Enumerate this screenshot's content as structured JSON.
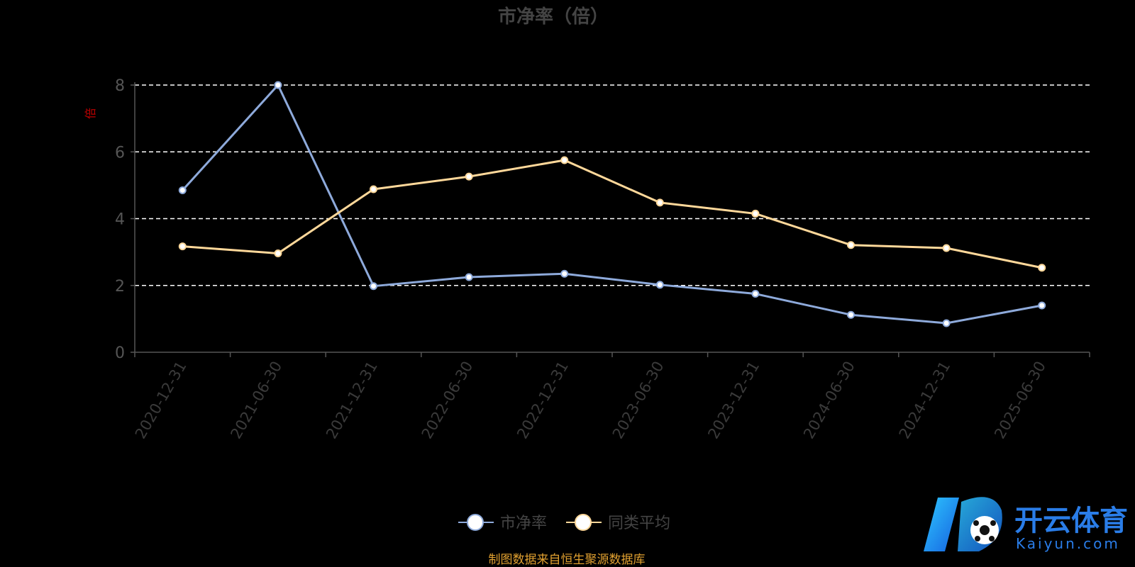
{
  "chart_data": {
    "type": "line",
    "title": "市净率（倍）",
    "ylabel": "倍",
    "xlabel": "",
    "categories": [
      "2020-12-31",
      "2021-06-30",
      "2021-12-31",
      "2022-06-30",
      "2022-12-31",
      "2023-06-30",
      "2023-12-31",
      "2024-06-30",
      "2024-12-31",
      "2025-06-30"
    ],
    "yticks": [
      "0",
      "2",
      "4",
      "6",
      "8"
    ],
    "ylim": [
      0,
      8
    ],
    "grid": true,
    "legend_position": "bottom-center",
    "series": [
      {
        "name": "市净率",
        "color": "#8eaadb",
        "values": [
          4.85,
          8.0,
          1.98,
          2.25,
          2.35,
          2.02,
          1.75,
          1.12,
          0.87,
          1.4
        ]
      },
      {
        "name": "同类平均",
        "color": "#ffd89a",
        "values": [
          3.17,
          2.96,
          4.88,
          5.26,
          5.75,
          4.48,
          4.15,
          3.21,
          3.12,
          2.53
        ]
      }
    ]
  },
  "source_note": "制图数据来自恒生聚源数据库",
  "watermark": {
    "brand": "开云体育",
    "url": "Kaiyun.com"
  },
  "colors": {
    "background": "#000000",
    "grid": "#ffffff",
    "axis": "#555555",
    "source": "#e0a030"
  }
}
